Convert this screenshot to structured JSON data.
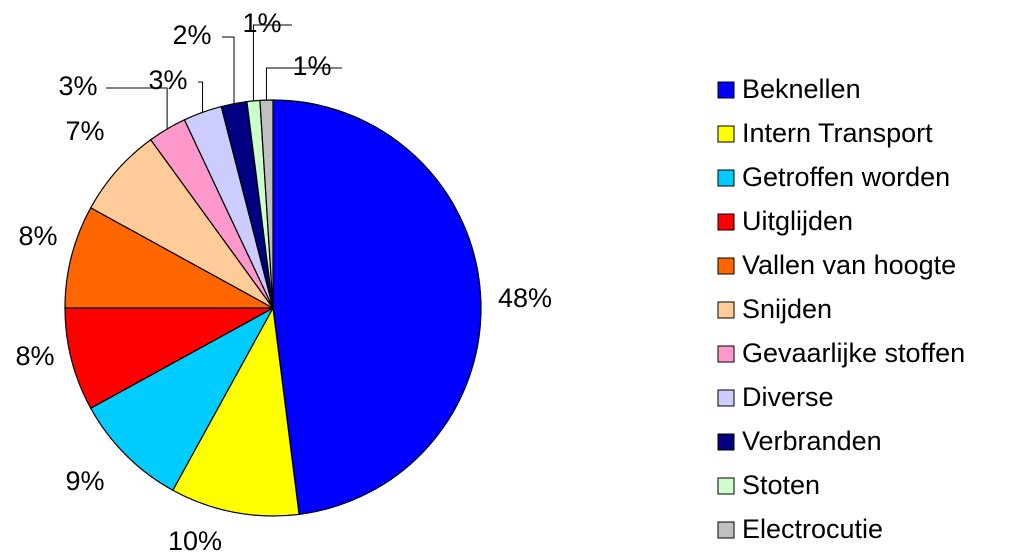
{
  "chart_data": {
    "type": "pie",
    "categories": [
      "Beknellen",
      "Intern Transport",
      "Getroffen worden",
      "Uitglijden",
      "Vallen van hoogte",
      "Snijden",
      "Gevaarlijke stoffen",
      "Diverse",
      "Verbranden",
      "Stoten",
      "Electrocutie"
    ],
    "values": [
      48,
      10,
      9,
      8,
      8,
      7,
      3,
      3,
      2,
      1,
      1
    ],
    "value_labels": [
      "48%",
      "10%",
      "9%",
      "8%",
      "8%",
      "7%",
      "3%",
      "3%",
      "2%",
      "1%",
      "1%"
    ],
    "colors": [
      "#0000ff",
      "#ffff00",
      "#00ccff",
      "#ff0000",
      "#ff6600",
      "#ffcc99",
      "#ff99cc",
      "#ccccff",
      "#000080",
      "#ccffcc",
      "#c0c0c0"
    ],
    "legend": "right"
  }
}
